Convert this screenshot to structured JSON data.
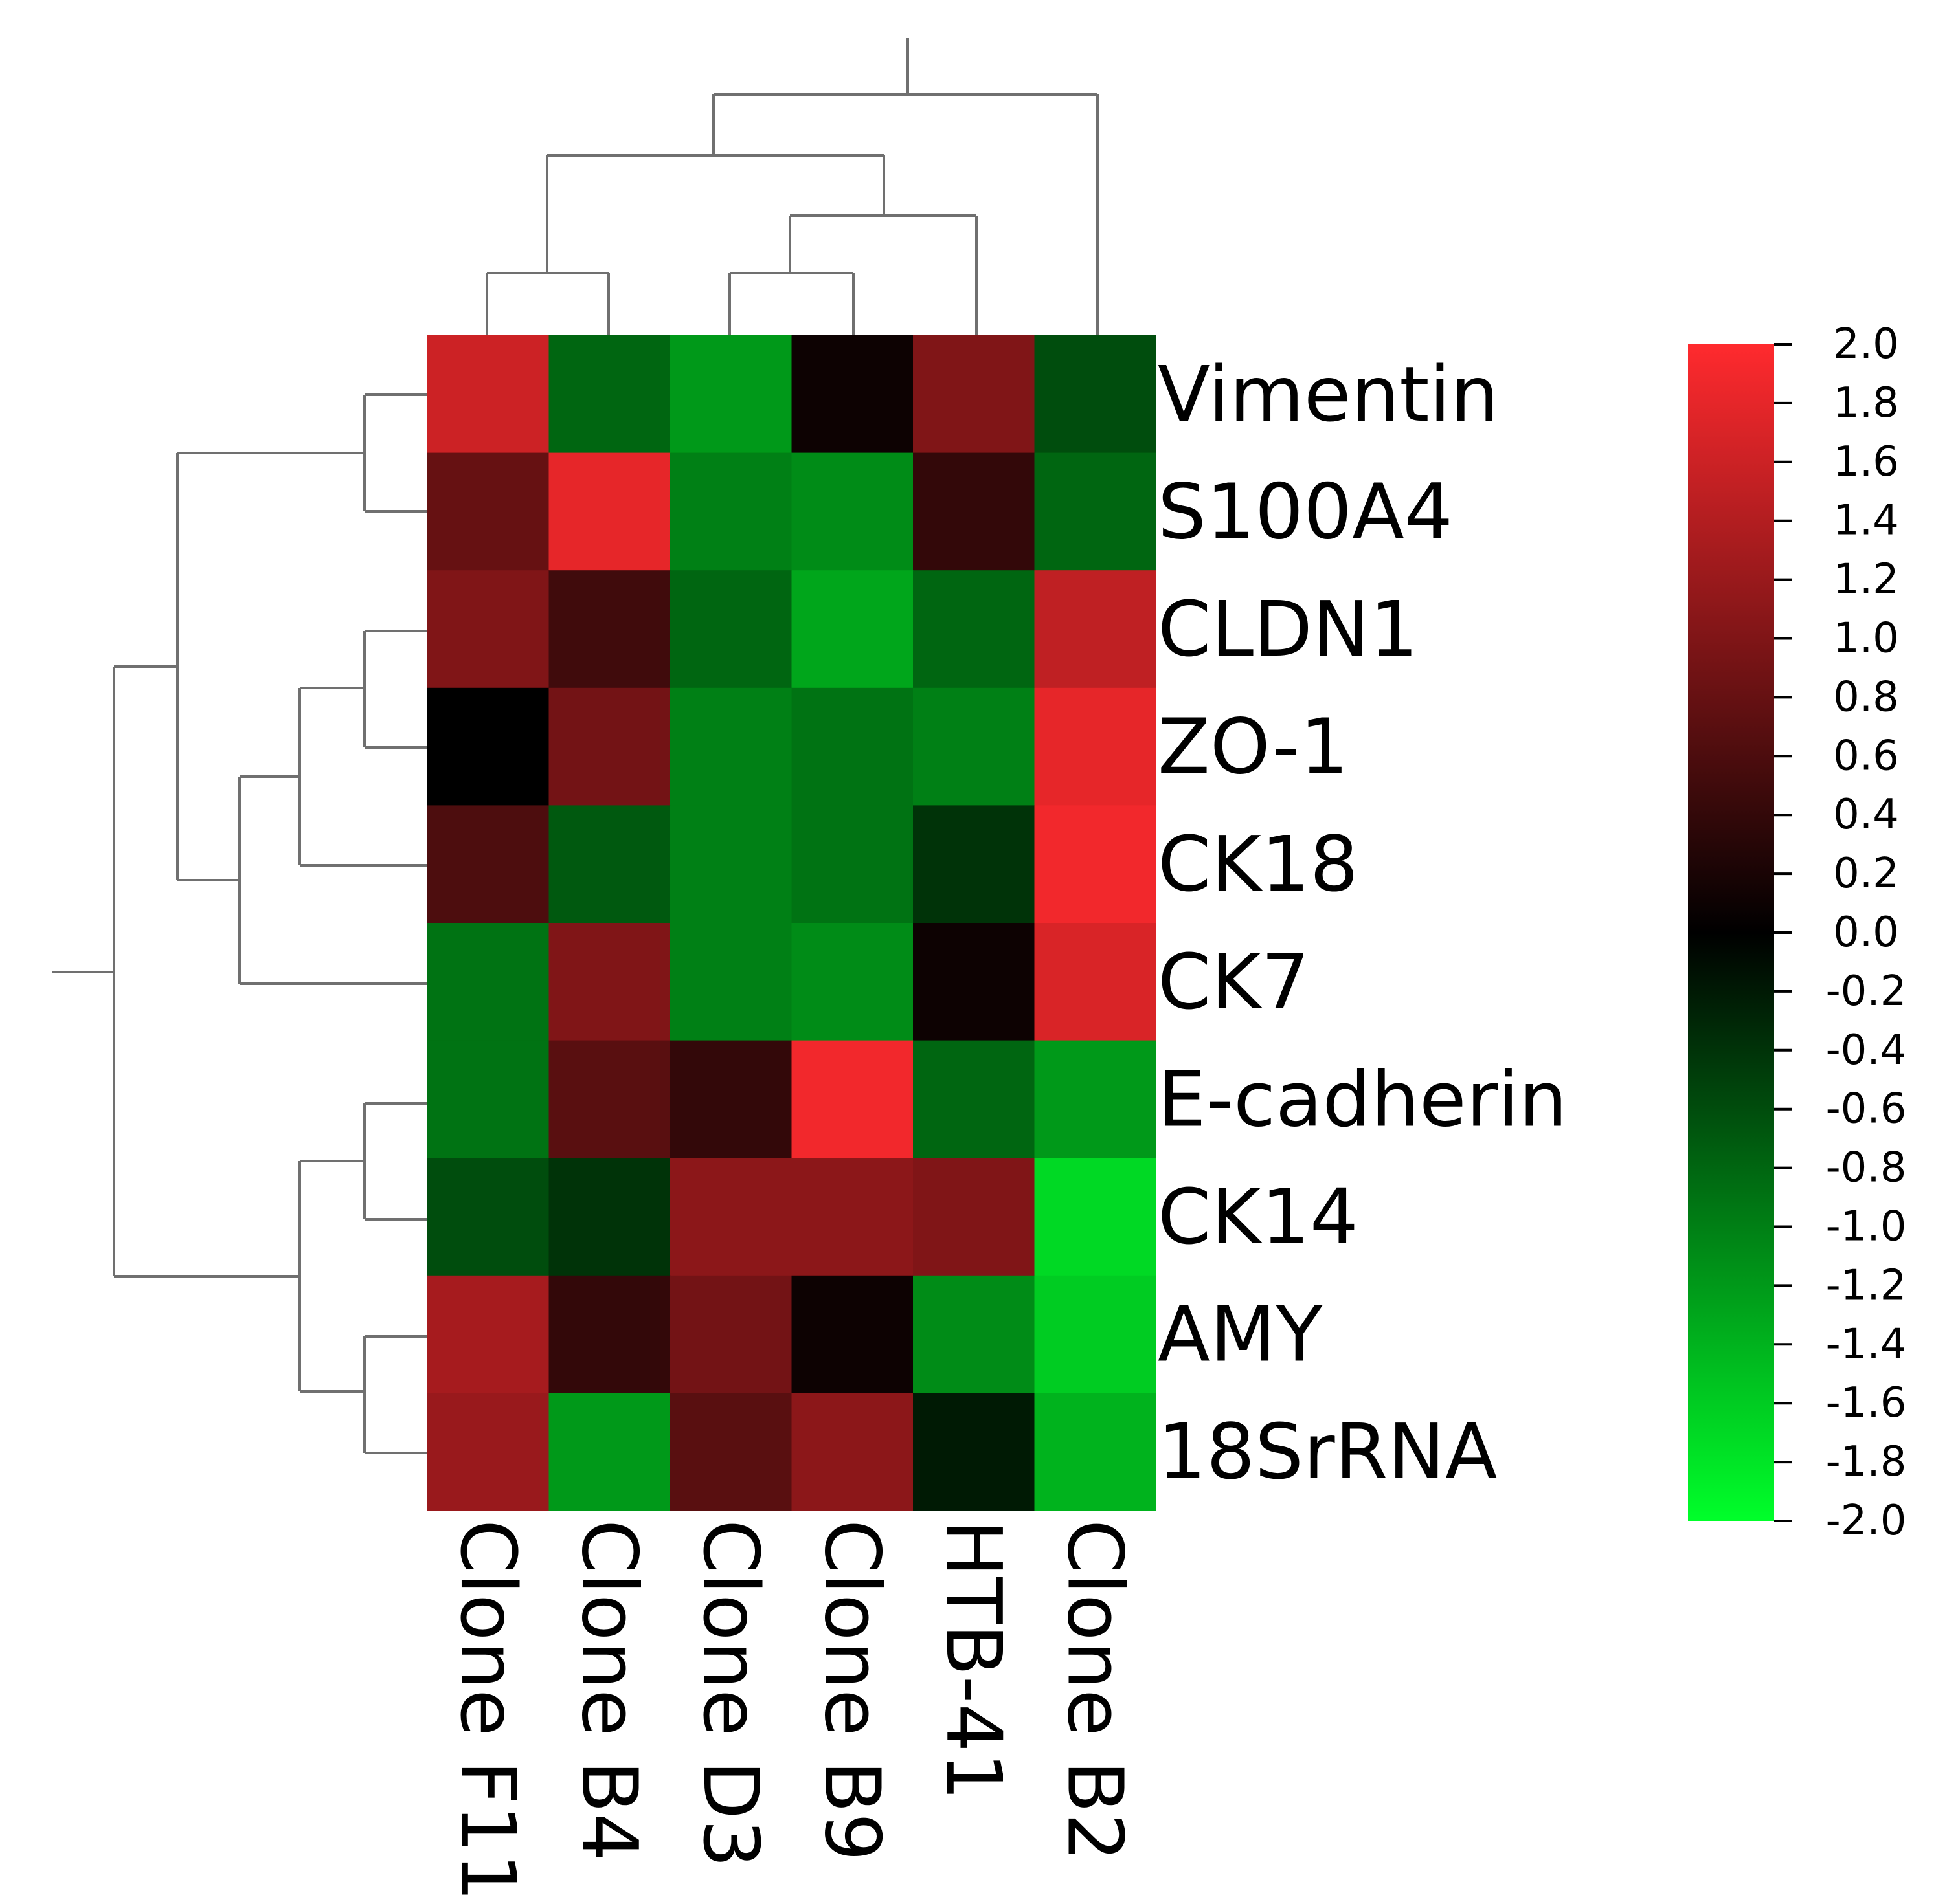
{
  "chart_data": {
    "type": "heatmap",
    "rows": [
      "Vimentin",
      "S100A4",
      "CLDN1",
      "ZO-1",
      "CK18",
      "CK7",
      "E-cadherin",
      "CK14",
      "AMY",
      "18SrRNA"
    ],
    "columns": [
      "Clone F11",
      "Clone B4",
      "Clone D3",
      "Clone B9",
      "HTB-41",
      "Clone B2"
    ],
    "values": [
      [
        1.6,
        -0.8,
        -1.2,
        0.1,
        1.0,
        -0.6
      ],
      [
        0.8,
        1.8,
        -1.0,
        -1.1,
        0.4,
        -0.8
      ],
      [
        1.0,
        0.5,
        -0.8,
        -1.3,
        -0.8,
        1.5
      ],
      [
        0.0,
        0.9,
        -1.0,
        -0.9,
        -1.0,
        1.8
      ],
      [
        0.6,
        -0.7,
        -1.0,
        -0.9,
        -0.4,
        1.9
      ],
      [
        -0.9,
        1.0,
        -1.0,
        -1.1,
        0.1,
        1.7
      ],
      [
        -0.9,
        0.7,
        0.4,
        1.9,
        -0.8,
        -1.2
      ],
      [
        -0.6,
        -0.4,
        1.1,
        1.1,
        1.0,
        -1.7
      ],
      [
        1.3,
        0.4,
        0.9,
        0.1,
        -1.1,
        -1.6
      ],
      [
        1.2,
        -1.2,
        0.7,
        1.1,
        -0.2,
        -1.4
      ]
    ],
    "color_scale": {
      "min": -2.0,
      "max": 2.0,
      "low_color": "#00ff2a",
      "mid_color": "#000000",
      "high_color": "#ff2a2e",
      "ticks": [
        "2.0",
        "1.8",
        "1.6",
        "1.4",
        "1.2",
        "1.0",
        "0.8",
        "0.6",
        "0.4",
        "0.2",
        "0.0",
        "-0.2",
        "-0.4",
        "-0.6",
        "-0.8",
        "-1.0",
        "-1.2",
        "-1.4",
        "-1.6",
        "-1.8",
        "-2.0"
      ]
    },
    "row_dendrogram": true,
    "column_dendrogram": true,
    "legend_placement": "right"
  }
}
